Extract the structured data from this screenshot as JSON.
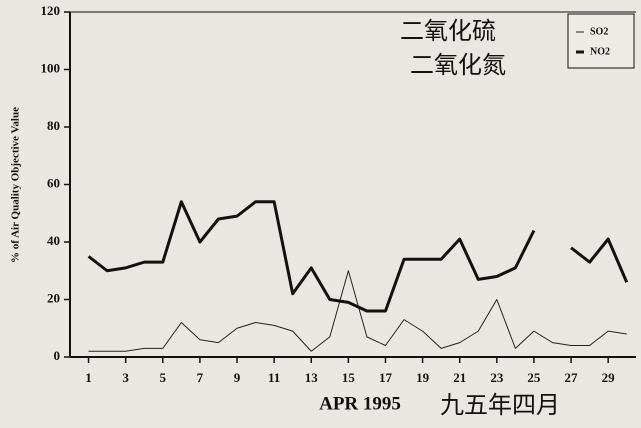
{
  "chart_data": {
    "type": "line",
    "y_label": "% of Air Quality Objective Value",
    "x_label": "APR 1995",
    "annotations": [
      "二氧化硫",
      "二氧化氮",
      "九五年四月"
    ],
    "x": [
      1,
      2,
      3,
      4,
      5,
      6,
      7,
      8,
      9,
      10,
      11,
      12,
      13,
      14,
      15,
      16,
      17,
      18,
      19,
      20,
      21,
      22,
      23,
      24,
      25,
      26,
      27,
      28,
      29,
      30
    ],
    "series": [
      {
        "name": "SO2",
        "color": "#222222",
        "values": [
          2,
          2,
          2,
          3,
          3,
          12,
          6,
          5,
          10,
          12,
          11,
          9,
          2,
          7,
          30,
          7,
          4,
          13,
          9,
          3,
          5,
          9,
          20,
          3,
          9,
          5,
          4,
          4,
          9,
          8
        ]
      },
      {
        "name": "NO2",
        "color": "#111111",
        "values": [
          35,
          30,
          31,
          33,
          33,
          54,
          40,
          48,
          49,
          54,
          54,
          22,
          31,
          20,
          19,
          16,
          16,
          34,
          34,
          34,
          41,
          27,
          28,
          31,
          44,
          null,
          38,
          33,
          41,
          26
        ]
      }
    ],
    "xlim": [
      0,
      30.5
    ],
    "xticks": [
      1,
      3,
      5,
      7,
      9,
      11,
      13,
      15,
      17,
      19,
      21,
      23,
      25,
      27,
      29
    ],
    "ylim": [
      0,
      120
    ],
    "yticks": [
      0,
      20,
      40,
      60,
      80,
      100,
      120
    ],
    "legend": "top-right"
  }
}
